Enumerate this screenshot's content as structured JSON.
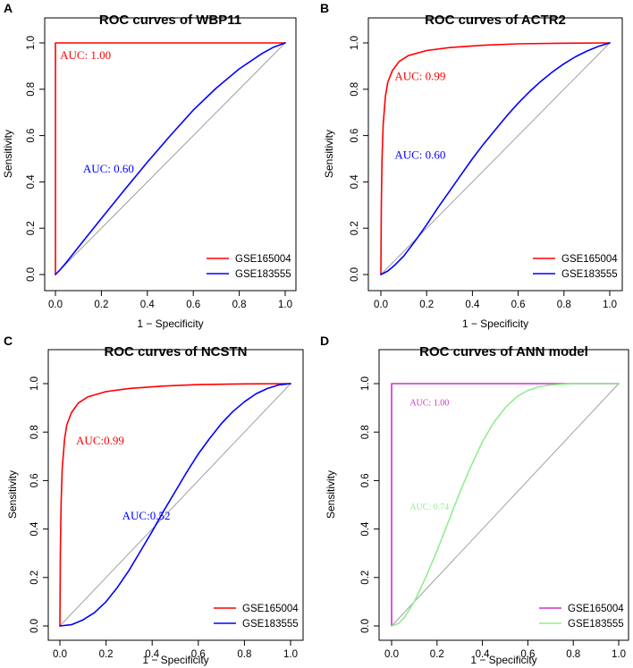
{
  "chart_data": [
    {
      "type": "line",
      "panel": "A",
      "title": "ROC curves of WBP11",
      "xlabel": "1 − Specificity",
      "ylabel": "Sensitivity",
      "xlim": [
        0,
        1
      ],
      "ylim": [
        0,
        1
      ],
      "xticks": [
        "0.0",
        "0.2",
        "0.4",
        "0.6",
        "0.8",
        "1.0"
      ],
      "yticks": [
        "0.0",
        "0.2",
        "0.4",
        "0.6",
        "0.8",
        "1.0"
      ],
      "legend_position": "bottom-right",
      "series": [
        {
          "name": "GSE165004",
          "color": "#ff0000",
          "auc_label": "AUC: 1.00",
          "auc_at": [
            0.02,
            0.93
          ],
          "auc_size": 13,
          "points": [
            [
              0,
              0
            ],
            [
              0,
              1
            ],
            [
              1,
              1
            ]
          ]
        },
        {
          "name": "GSE183555",
          "color": "#0000ff",
          "auc_label": "AUC: 0.60",
          "auc_at": [
            0.12,
            0.44
          ],
          "auc_size": 13,
          "points": [
            [
              0,
              0
            ],
            [
              0.02,
              0.02
            ],
            [
              0.05,
              0.055
            ],
            [
              0.1,
              0.118
            ],
            [
              0.15,
              0.18
            ],
            [
              0.2,
              0.242
            ],
            [
              0.3,
              0.365
            ],
            [
              0.4,
              0.485
            ],
            [
              0.5,
              0.6
            ],
            [
              0.6,
              0.71
            ],
            [
              0.7,
              0.805
            ],
            [
              0.8,
              0.888
            ],
            [
              0.9,
              0.955
            ],
            [
              0.95,
              0.982
            ],
            [
              1,
              1
            ]
          ]
        }
      ]
    },
    {
      "type": "line",
      "panel": "B",
      "title": "ROC curves of ACTR2",
      "xlabel": "1 − Specificity",
      "ylabel": "Sensitivity",
      "xlim": [
        0,
        1
      ],
      "ylim": [
        0,
        1
      ],
      "xticks": [
        "0.0",
        "0.2",
        "0.4",
        "0.6",
        "0.8",
        "1.0"
      ],
      "yticks": [
        "0.0",
        "0.2",
        "0.4",
        "0.6",
        "0.8",
        "1.0"
      ],
      "legend_position": "bottom-right",
      "series": [
        {
          "name": "GSE165004",
          "color": "#ff0000",
          "auc_label": "AUC: 0.99",
          "auc_at": [
            0.06,
            0.84
          ],
          "auc_size": 13,
          "points": [
            [
              0,
              0
            ],
            [
              0.002,
              0.3
            ],
            [
              0.005,
              0.5
            ],
            [
              0.01,
              0.65
            ],
            [
              0.02,
              0.77
            ],
            [
              0.03,
              0.83
            ],
            [
              0.05,
              0.88
            ],
            [
              0.08,
              0.92
            ],
            [
              0.12,
              0.945
            ],
            [
              0.2,
              0.967
            ],
            [
              0.3,
              0.98
            ],
            [
              0.45,
              0.99
            ],
            [
              0.6,
              0.996
            ],
            [
              0.8,
              0.999
            ],
            [
              1,
              1
            ]
          ]
        },
        {
          "name": "GSE183555",
          "color": "#0000ff",
          "auc_label": "AUC: 0.60",
          "auc_at": [
            0.06,
            0.5
          ],
          "auc_size": 13,
          "points": [
            [
              0,
              0
            ],
            [
              0.03,
              0.015
            ],
            [
              0.06,
              0.04
            ],
            [
              0.1,
              0.08
            ],
            [
              0.15,
              0.145
            ],
            [
              0.2,
              0.215
            ],
            [
              0.25,
              0.29
            ],
            [
              0.3,
              0.36
            ],
            [
              0.35,
              0.43
            ],
            [
              0.4,
              0.5
            ],
            [
              0.45,
              0.565
            ],
            [
              0.5,
              0.625
            ],
            [
              0.55,
              0.685
            ],
            [
              0.6,
              0.74
            ],
            [
              0.65,
              0.79
            ],
            [
              0.7,
              0.835
            ],
            [
              0.75,
              0.875
            ],
            [
              0.8,
              0.91
            ],
            [
              0.85,
              0.94
            ],
            [
              0.9,
              0.965
            ],
            [
              0.95,
              0.985
            ],
            [
              1,
              1
            ]
          ]
        }
      ]
    },
    {
      "type": "line",
      "panel": "C",
      "title": "ROC curves of NCSTN",
      "xlabel": "1 − Specificity",
      "ylabel": "Sensitivity",
      "xlim": [
        0,
        1
      ],
      "ylim": [
        0,
        1
      ],
      "xticks": [
        "0.0",
        "0.2",
        "0.4",
        "0.6",
        "0.8",
        "1.0"
      ],
      "yticks": [
        "0.0",
        "0.2",
        "0.4",
        "0.6",
        "0.8",
        "1.0"
      ],
      "legend_position": "bottom-right",
      "series": [
        {
          "name": "GSE165004",
          "color": "#ff0000",
          "auc_label": "AUC:0.99",
          "auc_at": [
            0.07,
            0.75
          ],
          "auc_size": 13,
          "points": [
            [
              0,
              0
            ],
            [
              0.002,
              0.3
            ],
            [
              0.005,
              0.5
            ],
            [
              0.01,
              0.65
            ],
            [
              0.02,
              0.77
            ],
            [
              0.03,
              0.83
            ],
            [
              0.05,
              0.88
            ],
            [
              0.08,
              0.92
            ],
            [
              0.12,
              0.945
            ],
            [
              0.2,
              0.967
            ],
            [
              0.3,
              0.98
            ],
            [
              0.45,
              0.99
            ],
            [
              0.6,
              0.996
            ],
            [
              0.8,
              0.999
            ],
            [
              1,
              1
            ]
          ]
        },
        {
          "name": "GSE183555",
          "color": "#0000ff",
          "auc_label": "AUC:0.52",
          "auc_at": [
            0.27,
            0.44
          ],
          "auc_size": 13,
          "points": [
            [
              0,
              0
            ],
            [
              0.05,
              0.005
            ],
            [
              0.1,
              0.025
            ],
            [
              0.15,
              0.055
            ],
            [
              0.2,
              0.1
            ],
            [
              0.25,
              0.16
            ],
            [
              0.3,
              0.23
            ],
            [
              0.35,
              0.31
            ],
            [
              0.4,
              0.39
            ],
            [
              0.45,
              0.475
            ],
            [
              0.5,
              0.555
            ],
            [
              0.55,
              0.635
            ],
            [
              0.6,
              0.71
            ],
            [
              0.65,
              0.775
            ],
            [
              0.7,
              0.835
            ],
            [
              0.75,
              0.885
            ],
            [
              0.8,
              0.925
            ],
            [
              0.85,
              0.958
            ],
            [
              0.9,
              0.98
            ],
            [
              0.95,
              0.995
            ],
            [
              1,
              1
            ]
          ]
        }
      ]
    },
    {
      "type": "line",
      "panel": "D",
      "title": "ROC curves of ANN model",
      "xlabel": "1 − Specificity",
      "ylabel": "Sensitivity",
      "xlim": [
        0,
        1
      ],
      "ylim": [
        0,
        1
      ],
      "xticks": [
        "0.0",
        "0.2",
        "0.4",
        "0.6",
        "0.8",
        "1.0"
      ],
      "yticks": [
        "0.0",
        "0.2",
        "0.4",
        "0.6",
        "0.8",
        "1.0"
      ],
      "legend_position": "bottom-right",
      "series": [
        {
          "name": "GSE165004",
          "color": "#cc33cc",
          "auc_label": "AUC: 1.00",
          "auc_at": [
            0.08,
            0.91
          ],
          "auc_size": 10,
          "points": [
            [
              0,
              0
            ],
            [
              0,
              1
            ],
            [
              1,
              1
            ]
          ]
        },
        {
          "name": "GSE183555",
          "color": "#90ee90",
          "auc_label": "AUC: 0.74",
          "auc_at": [
            0.08,
            0.48
          ],
          "auc_size": 10,
          "points": [
            [
              0,
              0
            ],
            [
              0.03,
              0.01
            ],
            [
              0.06,
              0.04
            ],
            [
              0.1,
              0.1
            ],
            [
              0.15,
              0.2
            ],
            [
              0.2,
              0.31
            ],
            [
              0.25,
              0.43
            ],
            [
              0.3,
              0.55
            ],
            [
              0.35,
              0.66
            ],
            [
              0.4,
              0.76
            ],
            [
              0.45,
              0.84
            ],
            [
              0.5,
              0.9
            ],
            [
              0.55,
              0.945
            ],
            [
              0.6,
              0.972
            ],
            [
              0.65,
              0.987
            ],
            [
              0.7,
              0.995
            ],
            [
              0.8,
              1
            ],
            [
              1,
              1
            ]
          ]
        }
      ]
    }
  ]
}
